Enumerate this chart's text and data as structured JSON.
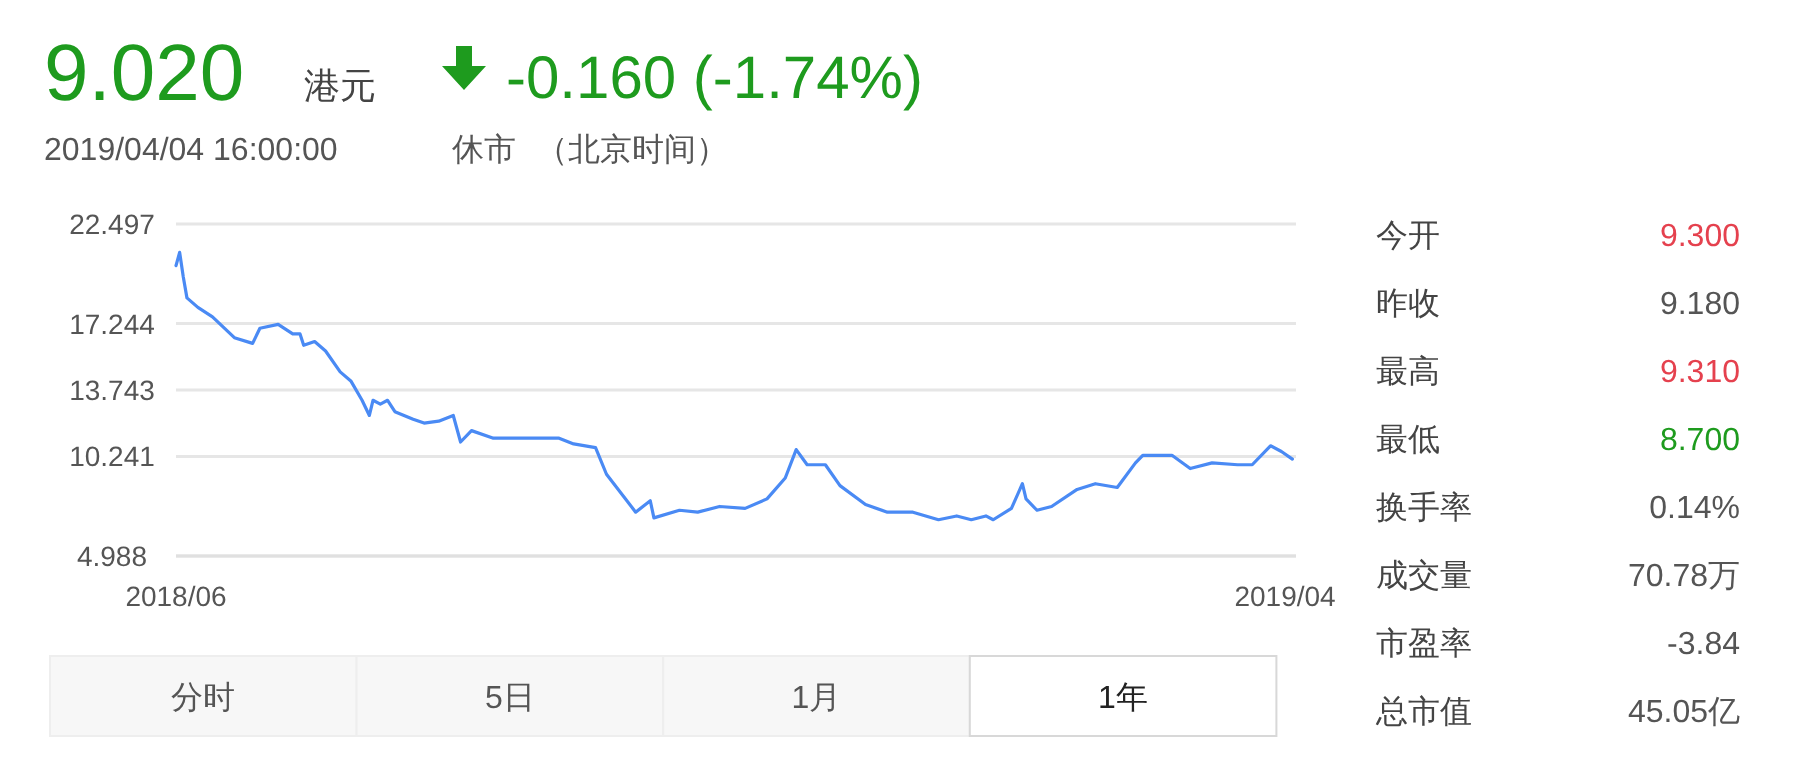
{
  "chart_data": {
    "type": "line",
    "title": "9.020",
    "annotations": [
      "港元",
      "-0.160 (-1.74%)",
      "2019/04/04 16:00:00",
      "休市",
      "（北京时间）",
      "今开",
      "9.300",
      "昨收",
      "9.180",
      "最高",
      "9.310",
      "最低",
      "8.700",
      "换手率",
      "0.14%",
      "成交量",
      "70.78万",
      "市盈率",
      "-3.84",
      "总市值",
      "45.05亿",
      "分时",
      "5日",
      "1月",
      "1年"
    ],
    "series": [
      {
        "color": "#4a8af4",
        "x": [
          "2018-06-01",
          "2018-06-02",
          "2018-06-03",
          "2018-06-04",
          "2018-06-07",
          "2018-06-11",
          "2018-06-17",
          "2018-06-22",
          "2018-06-24",
          "2018-06-29",
          "2018-07-03",
          "2018-07-05",
          "2018-07-06",
          "2018-07-09",
          "2018-07-12",
          "2018-07-16",
          "2018-07-19",
          "2018-07-22",
          "2018-07-24",
          "2018-07-25",
          "2018-07-27",
          "2018-07-29",
          "2018-07-31",
          "2018-08-05",
          "2018-08-08",
          "2018-08-12",
          "2018-08-16",
          "2018-08-18",
          "2018-08-21",
          "2018-08-27",
          "2018-08-31",
          "2018-09-07",
          "2018-09-14",
          "2018-09-18",
          "2018-09-24",
          "2018-09-27",
          "2018-10-05",
          "2018-10-09",
          "2018-10-10",
          "2018-10-17",
          "2018-10-22",
          "2018-10-28",
          "2018-11-04",
          "2018-11-10",
          "2018-11-15",
          "2018-11-18",
          "2018-11-21",
          "2018-11-26",
          "2018-11-30",
          "2018-12-07",
          "2018-12-13",
          "2018-12-20",
          "2018-12-27",
          "2019-01-01",
          "2019-01-05",
          "2019-01-09",
          "2019-01-11",
          "2019-01-16",
          "2019-01-19",
          "2019-01-20",
          "2019-01-23",
          "2019-01-27",
          "2019-02-03",
          "2019-02-08",
          "2019-02-14",
          "2019-02-19",
          "2019-02-21",
          "2019-03-01",
          "2019-03-06",
          "2019-03-12",
          "2019-03-19",
          "2019-03-23",
          "2019-03-28",
          "2019-03-31",
          "2019-04-03"
        ],
        "values": [
          20.3,
          21.0,
          19.7,
          18.6,
          18.1,
          17.6,
          16.5,
          16.2,
          17.0,
          17.2,
          16.7,
          16.7,
          16.1,
          16.3,
          15.8,
          14.7,
          14.2,
          13.2,
          12.4,
          13.2,
          13.0,
          13.2,
          12.6,
          12.2,
          12.0,
          12.1,
          12.4,
          11.0,
          11.6,
          11.2,
          11.2,
          11.2,
          11.2,
          10.9,
          10.7,
          9.3,
          7.3,
          7.9,
          7.0,
          7.4,
          7.3,
          7.6,
          7.5,
          8.0,
          9.1,
          10.6,
          9.8,
          9.8,
          8.7,
          7.7,
          7.3,
          7.3,
          6.9,
          7.1,
          6.9,
          7.1,
          6.9,
          7.5,
          8.8,
          8.0,
          7.4,
          7.6,
          8.5,
          8.8,
          8.6,
          9.9,
          10.3,
          10.3,
          9.6,
          9.9,
          9.8,
          9.8,
          10.8,
          10.5,
          10.1
        ]
      }
    ],
    "xlim": [
      "2018-06-01",
      "2019-04-04"
    ],
    "xticks": [
      {
        "value": "2018-06-01",
        "label": "2018/06"
      },
      {
        "value": "2019-04-01",
        "label": "2019/04"
      }
    ],
    "ylim": [
      4.988,
      22.497
    ],
    "yticks": [
      4.988,
      10.241,
      13.743,
      17.244,
      22.497
    ],
    "grid": "y",
    "marker": "none",
    "line_style": "solid"
  }
}
